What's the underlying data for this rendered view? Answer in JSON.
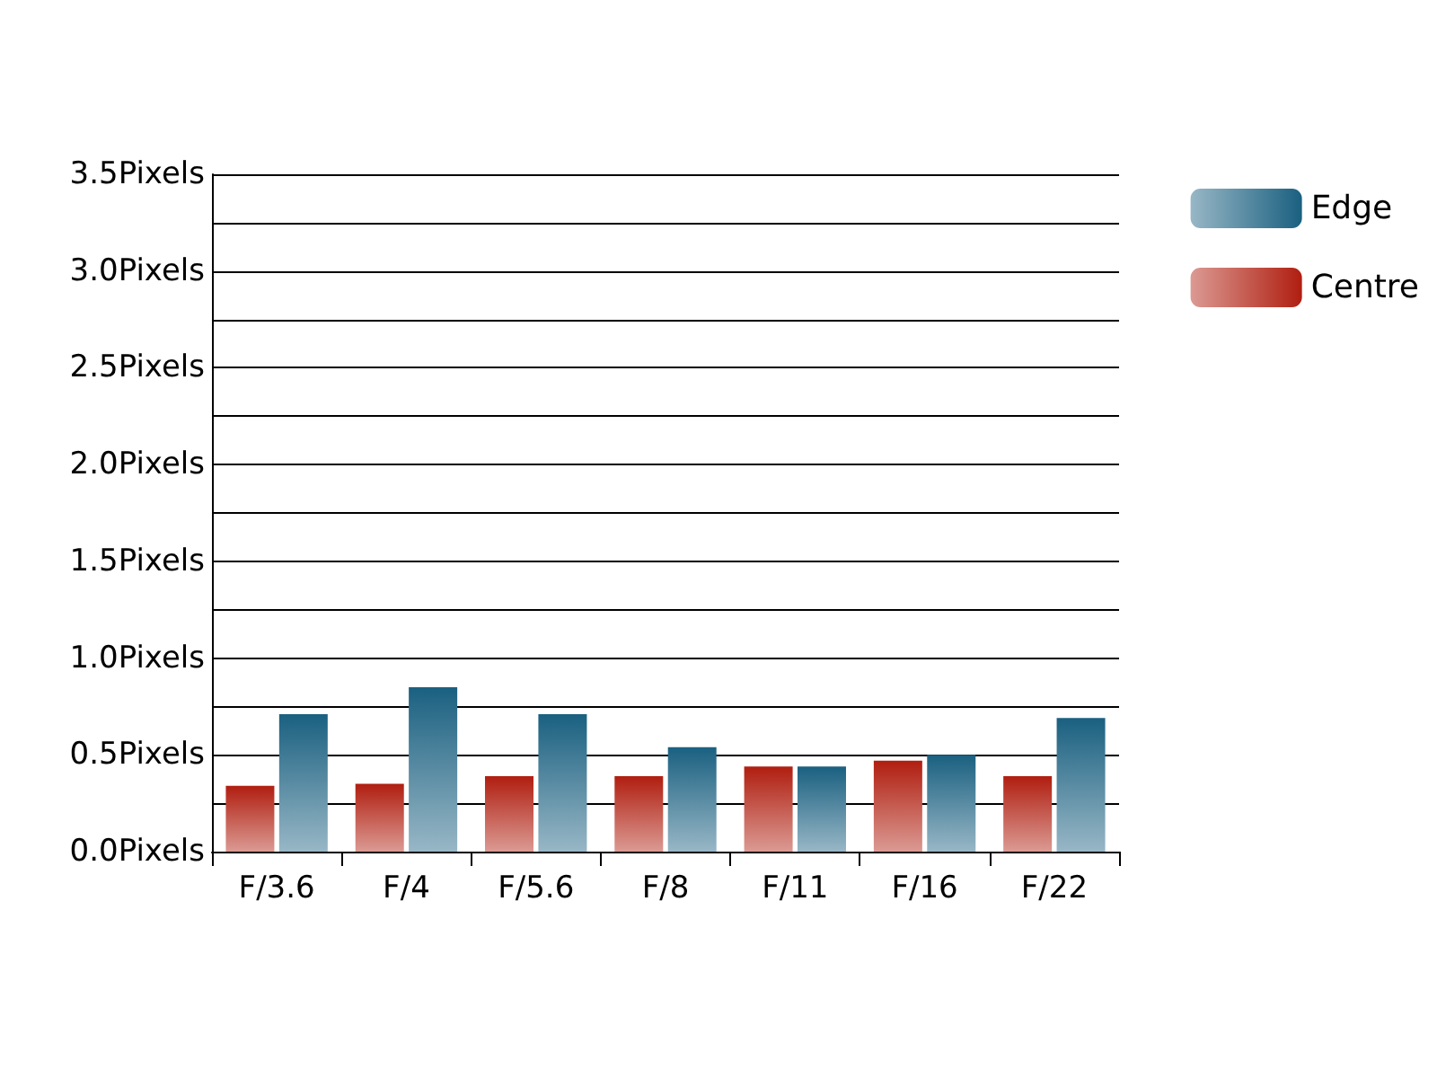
{
  "chart_data": {
    "type": "bar",
    "categories": [
      "F/3.6",
      "F/4",
      "F/5.6",
      "F/8",
      "F/11",
      "F/16",
      "F/22"
    ],
    "series": [
      {
        "name": "Centre",
        "color": "#b01e10",
        "values": [
          0.34,
          0.35,
          0.39,
          0.39,
          0.44,
          0.47,
          0.39
        ]
      },
      {
        "name": "Edge",
        "color": "#1a6080",
        "values": [
          0.71,
          0.85,
          0.71,
          0.54,
          0.44,
          0.5,
          0.69
        ]
      }
    ],
    "ylim": [
      0,
      3.5
    ],
    "yticks": [
      {
        "value": 0,
        "label": "0.0Pixels"
      },
      {
        "value": 0.25,
        "label": null
      },
      {
        "value": 0.5,
        "label": "0.5Pixels"
      },
      {
        "value": 0.75,
        "label": null
      },
      {
        "value": 1,
        "label": "1.0Pixels"
      },
      {
        "value": 1.25,
        "label": null
      },
      {
        "value": 1.5,
        "label": "1.5Pixels"
      },
      {
        "value": 1.75,
        "label": null
      },
      {
        "value": 2,
        "label": "2.0Pixels"
      },
      {
        "value": 2.25,
        "label": null
      },
      {
        "value": 2.5,
        "label": "2.5Pixels"
      },
      {
        "value": 2.75,
        "label": null
      },
      {
        "value": 3,
        "label": "3.0Pixels"
      },
      {
        "value": 3.25,
        "label": null
      },
      {
        "value": 3.5,
        "label": "3.5Pixels"
      }
    ],
    "grid": "y",
    "legend": "top right"
  }
}
